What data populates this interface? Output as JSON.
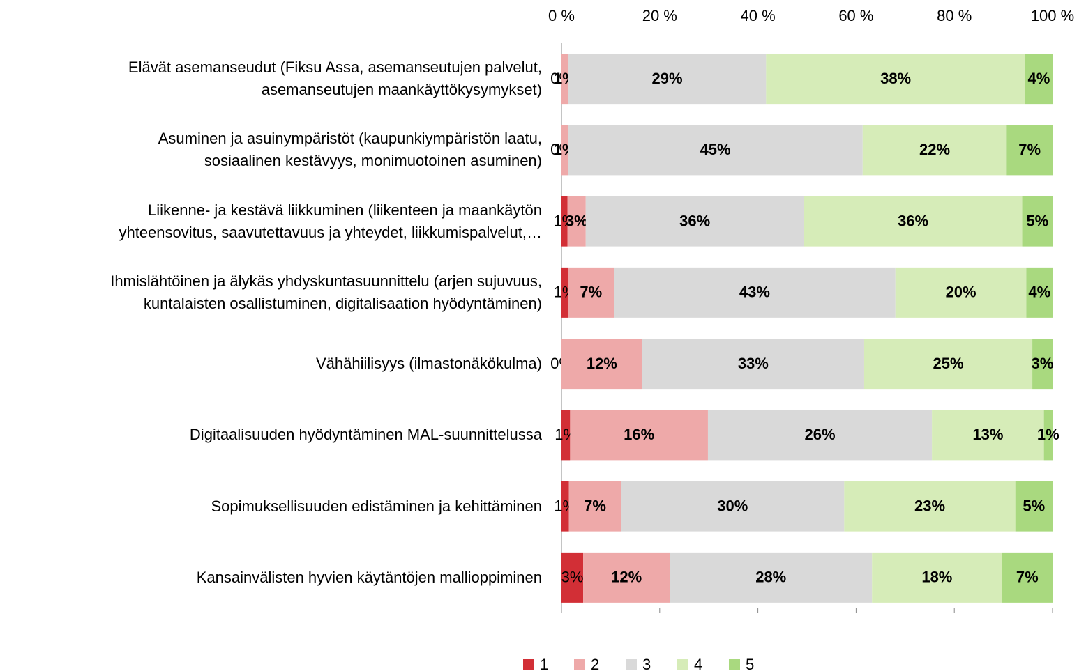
{
  "chart_data": {
    "type": "bar",
    "orientation": "horizontal",
    "stacked": "percent",
    "categories": [
      "Elävät asemanseudut (Fiksu Assa, asemanseutujen palvelut,\nasemanseutujen maankäyttökysymykset)",
      "Asuminen ja asuinympäristöt (kaupunkiympäristön laatu,\nsosiaalinen kestävyys, monimuotoinen asuminen)",
      "Liikenne- ja kestävä liikkuminen (liikenteen ja maankäytön\nyhteensovitus, saavutettavuus ja yhteydet, liikkumispalvelut,…",
      "Ihmislähtöinen ja älykäs yhdyskuntasuunnittelu (arjen sujuvuus,\nkuntalaisten osallistuminen, digitalisaation hyödyntäminen)",
      "Vähähiilisyys (ilmastonäkökulma)",
      "Digitaalisuuden hyödyntäminen MAL-suunnittelussa",
      "Sopimuksellisuuden edistäminen ja kehittäminen",
      "Kansainvälisten hyvien käytäntöjen mallioppiminen"
    ],
    "series": [
      {
        "name": "1",
        "color": "#d22f36",
        "values": [
          0,
          0,
          1,
          1,
          0,
          1,
          1,
          3
        ],
        "value_labels": [
          "0%",
          "0%",
          "1%",
          "1%",
          "0%",
          "1%",
          "1%",
          "3%"
        ]
      },
      {
        "name": "2",
        "color": "#eea9a9",
        "values": [
          1,
          1,
          3,
          7,
          12,
          16,
          7,
          12
        ],
        "value_labels": [
          "1%",
          "1%",
          "3%",
          "7%",
          "12%",
          "16%",
          "7%",
          "12%"
        ]
      },
      {
        "name": "3",
        "color": "#d9d9d9",
        "values": [
          29,
          45,
          36,
          43,
          33,
          26,
          30,
          28
        ],
        "value_labels": [
          "29%",
          "45%",
          "36%",
          "43%",
          "33%",
          "26%",
          "30%",
          "28%"
        ]
      },
      {
        "name": "4",
        "color": "#d6ecb8",
        "values": [
          38,
          22,
          36,
          20,
          25,
          13,
          23,
          18
        ],
        "value_labels": [
          "38%",
          "22%",
          "36%",
          "20%",
          "25%",
          "13%",
          "23%",
          "18%"
        ]
      },
      {
        "name": "5",
        "color": "#a9d97f",
        "values": [
          4,
          7,
          5,
          4,
          3,
          1,
          5,
          7
        ],
        "value_labels": [
          "4%",
          "7%",
          "5%",
          "4%",
          "3%",
          "1%",
          "5%",
          "7%"
        ]
      }
    ],
    "xlim": [
      0,
      100
    ],
    "xticks": [
      {
        "value": 0,
        "label": "0 %"
      },
      {
        "value": 20,
        "label": "20 %"
      },
      {
        "value": 40,
        "label": "40 %"
      },
      {
        "value": 60,
        "label": "60 %"
      },
      {
        "value": 80,
        "label": "80 %"
      },
      {
        "value": 100,
        "label": "100 %"
      }
    ],
    "legend": "bottom"
  }
}
